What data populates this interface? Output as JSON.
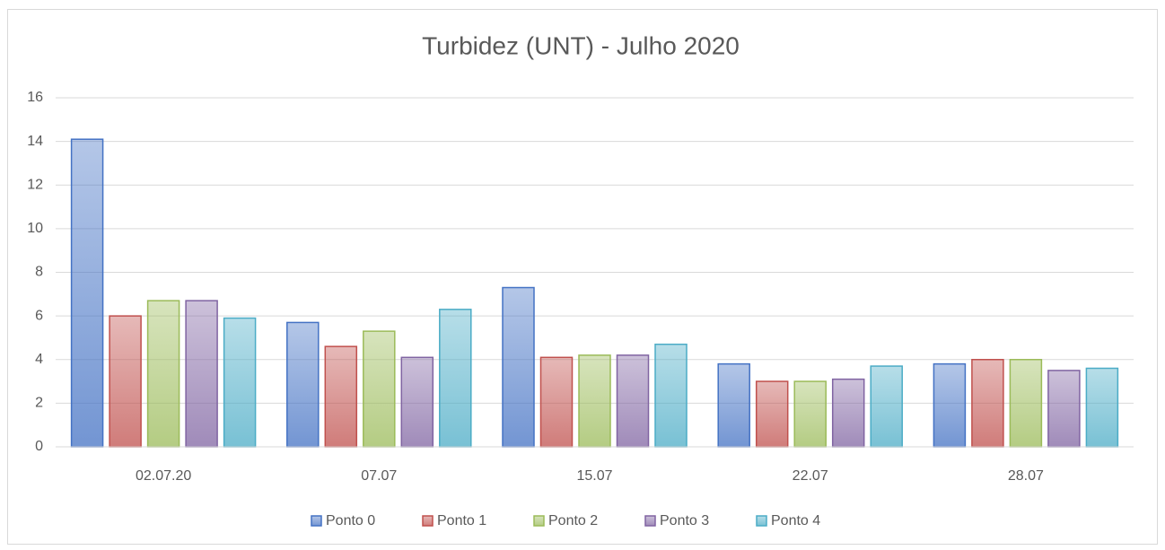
{
  "chart_data": {
    "type": "bar",
    "title": "Turbidez (UNT) - Julho 2020",
    "categories": [
      "02.07.20",
      "07.07",
      "15.07",
      "22.07",
      "28.07"
    ],
    "series": [
      {
        "name": "Ponto 0",
        "color": "#4472c4",
        "values": [
          14.1,
          5.7,
          7.3,
          3.8,
          3.8
        ]
      },
      {
        "name": "Ponto 1",
        "color": "#c0504d",
        "values": [
          6.0,
          4.6,
          4.1,
          3.0,
          4.0
        ]
      },
      {
        "name": "Ponto 2",
        "color": "#9bbb59",
        "values": [
          6.7,
          5.3,
          4.2,
          3.0,
          4.0
        ]
      },
      {
        "name": "Ponto 3",
        "color": "#8064a2",
        "values": [
          6.7,
          4.1,
          4.2,
          3.1,
          3.5
        ]
      },
      {
        "name": "Ponto 4",
        "color": "#4bacc6",
        "values": [
          5.9,
          6.3,
          4.7,
          3.7,
          3.6
        ]
      }
    ],
    "ylim": [
      0,
      16
    ],
    "yticks": [
      0,
      2,
      4,
      6,
      8,
      10,
      12,
      14,
      16
    ],
    "grid": true,
    "legend": "bottom"
  }
}
